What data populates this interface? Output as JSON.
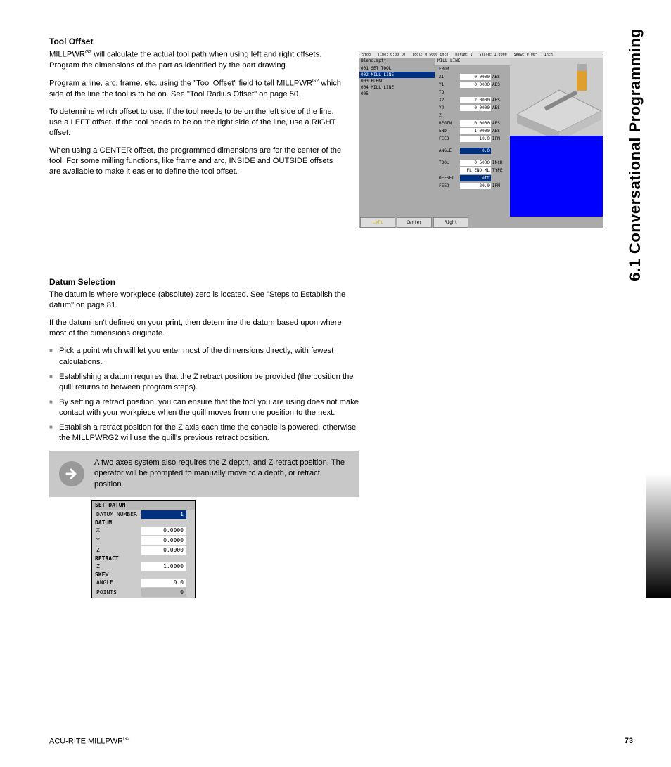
{
  "section1": {
    "title": "Tool Offset",
    "para1_a": "MILLPWR",
    "para1_sup": "G2",
    "para1_b": " will calculate the actual tool path when using left and right offsets. Program the dimensions of the part as identified by the part drawing.",
    "para2_a": "Program a line, arc, frame, etc. using the \"Tool Offset\" field to tell MILLPWR",
    "para2_sup": "G2",
    "para2_b": " which side of the line the tool is to be on. See \"Tool Radius Offset\" on page 50.",
    "para3": "To determine which offset to use:  If the tool needs to be on the left side of the line, use a LEFT offset. If the tool needs to be on the right side of the line, use a RIGHT offset.",
    "para4": "When using a CENTER offset, the programmed dimensions are for the center of the tool. For some milling functions, like frame and arc, INSIDE and OUTSIDE offsets are available to make it easier to define the tool offset."
  },
  "section2": {
    "title": "Datum Selection",
    "para1": "The datum is where workpiece (absolute) zero is located. See \"Steps to Establish the datum\" on page 81.",
    "para2": "If the datum isn't defined on your print, then determine the datum based upon where most of the dimensions originate.",
    "bullets": [
      "Pick a point which will let you enter most of the dimensions directly, with fewest calculations.",
      "Establishing a datum requires that the  Z retract position be provided (the position the quill returns to between program steps).",
      "By setting a retract position, you can ensure that the tool you are using does not make contact with your workpiece when the quill moves from one position to the next.",
      "Establish a retract position for the Z axis each time the console is powered, otherwise the MILLPWRG2 will use the quill's previous retract position."
    ],
    "note": "A two axes system also requires the Z depth, and Z retract position. The operator will be prompted to manually move to a depth, or retract position."
  },
  "screenshot": {
    "topbar": {
      "stop": "Stop",
      "time": "Time: 0:00:10",
      "tool": "Tool: 0.5000 inch",
      "datum": "Datum: 1",
      "scale": "Scale: 1.0000",
      "skew": "Skew: 0.00°",
      "unit": "Inch"
    },
    "progname": "Blend.mpt*",
    "rows": [
      {
        "n": "001",
        "t": "SET TOOL"
      },
      {
        "n": "002",
        "t": "MILL LINE",
        "sel": true
      },
      {
        "n": "003",
        "t": "BLEND"
      },
      {
        "n": "004",
        "t": "MILL LINE"
      },
      {
        "n": "005",
        "t": ""
      }
    ],
    "midtitle": "MILL LINE",
    "midrows": [
      {
        "lbl": "FROM",
        "val": "",
        "u": ""
      },
      {
        "lbl": "X1",
        "val": "0.0000",
        "u": "ABS"
      },
      {
        "lbl": "Y1",
        "val": "0.0000",
        "u": "ABS"
      },
      {
        "lbl": "TO",
        "val": "",
        "u": ""
      },
      {
        "lbl": "X2",
        "val": "2.0000",
        "u": "ABS"
      },
      {
        "lbl": "Y2",
        "val": "0.0000",
        "u": "ABS"
      },
      {
        "lbl": "Z",
        "val": "",
        "u": ""
      },
      {
        "lbl": "BEGIN",
        "val": "0.0000",
        "u": "ABS"
      },
      {
        "lbl": "END",
        "val": "-1.0000",
        "u": "ABS"
      },
      {
        "lbl": "FEED",
        "val": "10.0",
        "u": "IPM"
      },
      {
        "lbl": "ANGLE",
        "val": "0.0",
        "u": "",
        "sel": true,
        "spaced": true
      },
      {
        "lbl": "TOOL",
        "val": "0.5000",
        "u": "INCH",
        "spaced": true
      },
      {
        "lbl": "",
        "val": "FL END ML",
        "u": "TYPE"
      },
      {
        "lbl": "OFFSET",
        "val": "Left",
        "u": "",
        "sel": true
      },
      {
        "lbl": "FEED",
        "val": "20.0",
        "u": "IPM"
      }
    ],
    "buttons": [
      "Left",
      "Center",
      "Right"
    ]
  },
  "datum_panel": {
    "title": "SET DATUM",
    "num_lbl": "DATUM NUMBER",
    "num_val": "1",
    "datum_lbl": "DATUM",
    "x_lbl": "X",
    "x_val": "0.0000",
    "y_lbl": "Y",
    "y_val": "0.0000",
    "z_lbl": "Z",
    "z_val": "0.0000",
    "retract_lbl": "RETRACT",
    "rz_lbl": "Z",
    "rz_val": "1.0000",
    "skew_lbl": "SKEW",
    "angle_lbl": "ANGLE",
    "angle_val": "0.0",
    "points_lbl": "POINTS",
    "points_val": "0"
  },
  "side_title": "6.1 Conversational Programming",
  "footer": {
    "left_a": "ACU-RITE MILLPWR",
    "left_sup": "G2",
    "page": "73"
  }
}
